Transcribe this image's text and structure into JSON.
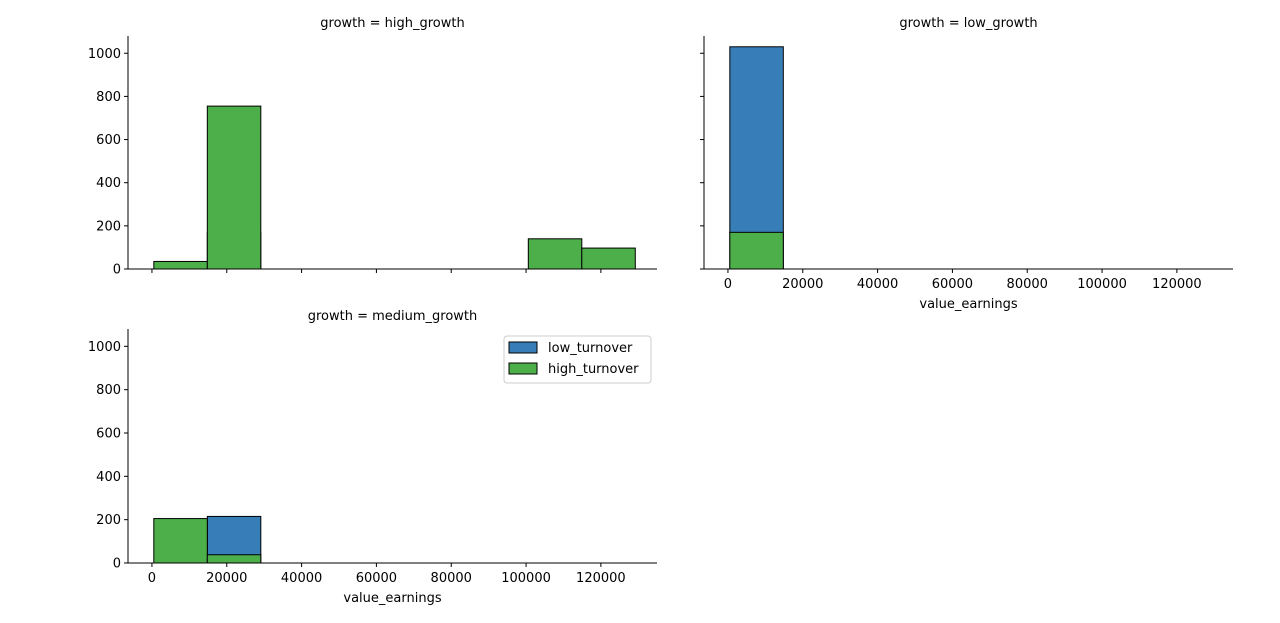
{
  "chart_data": {
    "type": "bar",
    "chart_kind": "faceted histogram",
    "x_field": "value_earnings",
    "y_ticks": [
      0,
      200,
      400,
      600,
      800,
      1000
    ],
    "ylim": [
      0,
      1080
    ],
    "x_ticks": [
      0,
      20000,
      40000,
      60000,
      80000,
      100000,
      120000
    ],
    "x_tick_labels": [
      "0",
      "20000",
      "40000",
      "60000",
      "80000",
      "100000",
      "120000"
    ],
    "xlim": [
      -6400,
      135000
    ],
    "bin_edges": [
      500,
      14800,
      29100,
      43400,
      57700,
      72000,
      86300,
      100600,
      114900,
      129200
    ],
    "legend": {
      "position": "top-right, in medium_growth panel",
      "entries": [
        "low_turnover",
        "high_turnover"
      ]
    },
    "colors": {
      "low_turnover": "#377eb8",
      "high_turnover": "#4daf4a"
    },
    "panels": [
      {
        "title": "growth = high_growth",
        "xlabel": "",
        "show_y_tick_labels": true,
        "show_x_tick_labels": false,
        "series": [
          {
            "name": "low_turnover",
            "values": [
              0,
              170,
              0,
              0,
              0,
              0,
              0,
              0,
              0
            ]
          },
          {
            "name": "high_turnover",
            "values": [
              35,
              755,
              0,
              0,
              0,
              0,
              0,
              140,
              97
            ]
          }
        ]
      },
      {
        "title": "growth = low_growth",
        "xlabel": "value_earnings",
        "show_y_tick_labels": false,
        "show_x_tick_labels": true,
        "series": [
          {
            "name": "low_turnover",
            "values": [
              1030,
              0,
              0,
              0,
              0,
              0,
              0,
              0,
              0
            ]
          },
          {
            "name": "high_turnover",
            "values": [
              170,
              0,
              0,
              0,
              0,
              0,
              0,
              0,
              0
            ]
          }
        ]
      },
      {
        "title": "growth = medium_growth",
        "xlabel": "value_earnings",
        "show_y_tick_labels": true,
        "show_x_tick_labels": true,
        "series": [
          {
            "name": "low_turnover",
            "values": [
              0,
              215,
              0,
              0,
              0,
              0,
              0,
              0,
              0
            ]
          },
          {
            "name": "high_turnover",
            "values": [
              205,
              38,
              0,
              0,
              0,
              0,
              0,
              0,
              0
            ]
          }
        ]
      }
    ]
  }
}
